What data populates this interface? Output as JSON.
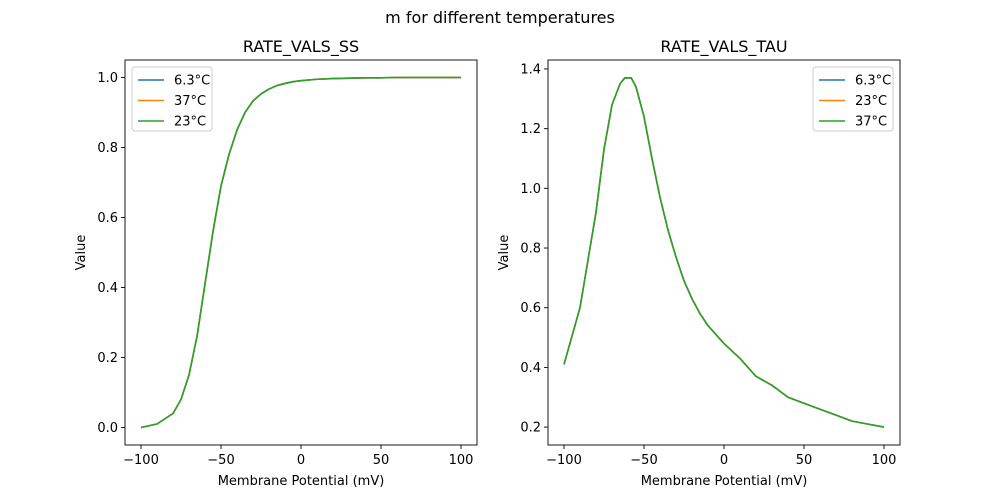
{
  "figure": {
    "suptitle": "m for different temperatures"
  },
  "chart_data": [
    {
      "type": "line",
      "title": "RATE_VALS_SS",
      "xlabel": "Membrane Potential (mV)",
      "ylabel": "Value",
      "xlim": [
        -110,
        110
      ],
      "ylim": [
        -0.05,
        1.05
      ],
      "xticks": [
        -100,
        -50,
        0,
        50,
        100
      ],
      "xtick_labels": [
        "−100",
        "−50",
        "0",
        "50",
        "100"
      ],
      "yticks": [
        0.0,
        0.2,
        0.4,
        0.6,
        0.8,
        1.0
      ],
      "ytick_labels": [
        "0.0",
        "0.2",
        "0.4",
        "0.6",
        "0.8",
        "1.0"
      ],
      "legend_position": "upper-left",
      "x": [
        -100,
        -90,
        -80,
        -75,
        -70,
        -65,
        -60,
        -55,
        -50,
        -45,
        -40,
        -35,
        -30,
        -25,
        -20,
        -15,
        -10,
        -5,
        0,
        10,
        20,
        30,
        40,
        50,
        60,
        70,
        80,
        90,
        100
      ],
      "series": [
        {
          "name": "6.3°C",
          "color": "#1f77b4",
          "values": [
            0.0,
            0.01,
            0.04,
            0.08,
            0.15,
            0.26,
            0.41,
            0.56,
            0.69,
            0.78,
            0.85,
            0.9,
            0.933,
            0.953,
            0.967,
            0.977,
            0.983,
            0.988,
            0.991,
            0.995,
            0.997,
            0.998,
            0.999,
            0.999,
            1.0,
            1.0,
            1.0,
            1.0,
            1.0
          ]
        },
        {
          "name": "37°C",
          "color": "#ff7f0e",
          "values": [
            0.0,
            0.01,
            0.04,
            0.08,
            0.15,
            0.26,
            0.41,
            0.56,
            0.69,
            0.78,
            0.85,
            0.9,
            0.933,
            0.953,
            0.967,
            0.977,
            0.983,
            0.988,
            0.991,
            0.995,
            0.997,
            0.998,
            0.999,
            0.999,
            1.0,
            1.0,
            1.0,
            1.0,
            1.0
          ]
        },
        {
          "name": "23°C",
          "color": "#2ca02c",
          "values": [
            0.0,
            0.01,
            0.04,
            0.08,
            0.15,
            0.26,
            0.41,
            0.56,
            0.69,
            0.78,
            0.85,
            0.9,
            0.933,
            0.953,
            0.967,
            0.977,
            0.983,
            0.988,
            0.991,
            0.995,
            0.997,
            0.998,
            0.999,
            0.999,
            1.0,
            1.0,
            1.0,
            1.0,
            1.0
          ]
        }
      ]
    },
    {
      "type": "line",
      "title": "RATE_VALS_TAU",
      "xlabel": "Membrane Potential (mV)",
      "ylabel": "Value",
      "xlim": [
        -110,
        110
      ],
      "ylim": [
        0.14,
        1.43
      ],
      "xticks": [
        -100,
        -50,
        0,
        50,
        100
      ],
      "xtick_labels": [
        "−100",
        "−50",
        "0",
        "50",
        "100"
      ],
      "yticks": [
        0.2,
        0.4,
        0.6,
        0.8,
        1.0,
        1.2,
        1.4
      ],
      "ytick_labels": [
        "0.2",
        "0.4",
        "0.6",
        "0.8",
        "1.0",
        "1.2",
        "1.4"
      ],
      "legend_position": "upper-right",
      "x": [
        -100,
        -90,
        -80,
        -75,
        -70,
        -65,
        -62,
        -60,
        -58,
        -55,
        -50,
        -45,
        -40,
        -35,
        -30,
        -25,
        -20,
        -15,
        -10,
        -5,
        0,
        10,
        20,
        30,
        40,
        50,
        60,
        70,
        80,
        90,
        100
      ],
      "series": [
        {
          "name": "6.3°C",
          "color": "#1f77b4",
          "values": [
            0.41,
            0.6,
            0.92,
            1.13,
            1.28,
            1.35,
            1.37,
            1.37,
            1.37,
            1.34,
            1.24,
            1.1,
            0.97,
            0.86,
            0.77,
            0.69,
            0.63,
            0.58,
            0.54,
            0.51,
            0.48,
            0.43,
            0.37,
            0.34,
            0.3,
            0.28,
            0.26,
            0.24,
            0.22,
            0.21,
            0.2
          ]
        },
        {
          "name": "23°C",
          "color": "#ff7f0e",
          "values": [
            0.41,
            0.6,
            0.92,
            1.13,
            1.28,
            1.35,
            1.37,
            1.37,
            1.37,
            1.34,
            1.24,
            1.1,
            0.97,
            0.86,
            0.77,
            0.69,
            0.63,
            0.58,
            0.54,
            0.51,
            0.48,
            0.43,
            0.37,
            0.34,
            0.3,
            0.28,
            0.26,
            0.24,
            0.22,
            0.21,
            0.2
          ]
        },
        {
          "name": "37°C",
          "color": "#2ca02c",
          "values": [
            0.41,
            0.6,
            0.92,
            1.13,
            1.28,
            1.35,
            1.37,
            1.37,
            1.37,
            1.34,
            1.24,
            1.1,
            0.97,
            0.86,
            0.77,
            0.69,
            0.63,
            0.58,
            0.54,
            0.51,
            0.48,
            0.43,
            0.37,
            0.34,
            0.3,
            0.28,
            0.26,
            0.24,
            0.22,
            0.21,
            0.2
          ]
        }
      ]
    }
  ]
}
